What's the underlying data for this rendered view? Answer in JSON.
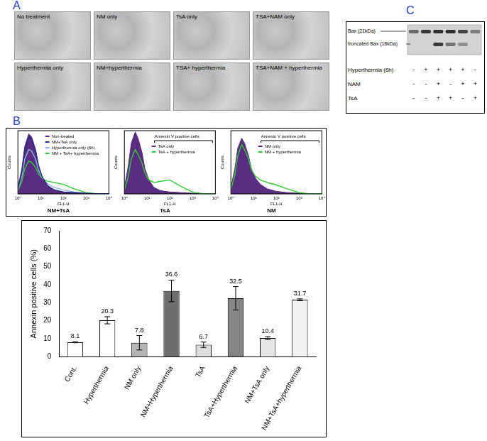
{
  "panel_labels": [
    "A",
    "B",
    "C"
  ],
  "images": [
    "No treatment",
    "NM only",
    "TsA only",
    "TSA+NAM only",
    "Hyperthermia only",
    "NM+hyperthermia",
    "TSA+ hyperthermia",
    "TSA+NAM + hyperthermia"
  ],
  "chart_data": [
    {
      "type": "line",
      "title": "NM+TsA",
      "x_label": "FL1-H",
      "y_label": "Counts",
      "log": "x",
      "grid": false,
      "tick_labels": "x",
      "xlim": [
        1,
        10000
      ],
      "xticks": [
        {
          "value": 1,
          "label": "10⁰"
        },
        {
          "value": 10,
          "label": "10¹"
        },
        {
          "value": 100,
          "label": "10²"
        },
        {
          "value": 1000,
          "label": "10³"
        },
        {
          "value": 10000,
          "label": "10⁴"
        }
      ],
      "ylim": [
        0,
        100
      ],
      "x": [
        1,
        1.5,
        2,
        3,
        4,
        6,
        8,
        12,
        20,
        40,
        100,
        300,
        1000,
        3000,
        10000
      ],
      "series": [
        {
          "name": "Non-treated",
          "type": "area",
          "color": "#5a2d82",
          "values": [
            10,
            40,
            75,
            95,
            90,
            70,
            45,
            25,
            12,
            6,
            3,
            2,
            1,
            0,
            0
          ]
        },
        {
          "name": "NM+TsA only",
          "type": "line",
          "color": "#1f2a8a",
          "values": [
            8,
            35,
            70,
            90,
            88,
            68,
            45,
            26,
            13,
            6,
            3,
            2,
            1,
            0,
            0
          ]
        },
        {
          "name": "Hyperthermia only (6h)",
          "type": "line",
          "color": "#8fb4e8",
          "values": [
            6,
            28,
            55,
            70,
            68,
            55,
            38,
            25,
            16,
            10,
            6,
            3,
            1,
            0,
            0
          ]
        },
        {
          "name": "NM + TsA+ hyperthermia",
          "type": "line",
          "color": "#33cc33",
          "values": [
            5,
            20,
            40,
            52,
            50,
            42,
            32,
            24,
            20,
            18,
            15,
            8,
            2,
            0,
            0
          ]
        }
      ]
    },
    {
      "type": "line",
      "title": "TsA",
      "x_label": "FL1-H",
      "y_label": "Counts",
      "log": "x",
      "grid": false,
      "tick_labels": "x",
      "xlim": [
        1,
        10000
      ],
      "xticks": [
        {
          "value": 1,
          "label": "10⁰"
        },
        {
          "value": 10,
          "label": "10¹"
        },
        {
          "value": 100,
          "label": "10²"
        },
        {
          "value": 1000,
          "label": "10³"
        },
        {
          "value": 10000,
          "label": "10⁴"
        }
      ],
      "ylim": [
        0,
        100
      ],
      "annotations": [
        "Annexin V positive cells"
      ],
      "x": [
        1,
        1.5,
        2,
        3,
        4,
        6,
        8,
        12,
        20,
        40,
        100,
        300,
        1000,
        3000,
        10000
      ],
      "series": [
        {
          "name": "TsA only",
          "type": "area",
          "color": "#5a2d82",
          "values": [
            10,
            45,
            80,
            98,
            88,
            65,
            40,
            22,
            10,
            5,
            3,
            2,
            1,
            0,
            0
          ]
        },
        {
          "name": "TsA + hyperthermia",
          "type": "line",
          "color": "#33cc33",
          "values": [
            6,
            28,
            55,
            70,
            62,
            48,
            33,
            22,
            18,
            20,
            22,
            12,
            3,
            0,
            0
          ]
        }
      ]
    },
    {
      "type": "line",
      "title": "NM",
      "x_label": "FL1-H",
      "y_label": "Counts",
      "log": "x",
      "grid": false,
      "tick_labels": "x",
      "xlim": [
        1,
        10000
      ],
      "xticks": [
        {
          "value": 1,
          "label": "10⁰"
        },
        {
          "value": 10,
          "label": "10¹"
        },
        {
          "value": 100,
          "label": "10²"
        },
        {
          "value": 1000,
          "label": "10³"
        },
        {
          "value": 10000,
          "label": "10⁴"
        }
      ],
      "ylim": [
        0,
        100
      ],
      "annotations": [
        "Annexin V positive cells"
      ],
      "x": [
        1,
        1.5,
        2,
        3,
        4,
        6,
        8,
        12,
        20,
        40,
        100,
        300,
        1000,
        3000,
        10000
      ],
      "series": [
        {
          "name": "NM only",
          "type": "area",
          "color": "#5a2d82",
          "values": [
            10,
            40,
            72,
            88,
            80,
            60,
            40,
            25,
            15,
            8,
            4,
            2,
            1,
            0,
            0
          ]
        },
        {
          "name": "NM + hyperthermia",
          "type": "line",
          "color": "#33cc33",
          "values": [
            7,
            30,
            60,
            78,
            70,
            55,
            38,
            28,
            22,
            18,
            14,
            8,
            2,
            0,
            0
          ]
        }
      ]
    },
    {
      "type": "bar",
      "y_label": "Annexin positive cells (%)",
      "grid": false,
      "data_labels": true,
      "categories": [
        "Cont.",
        "Hyperthermia",
        "NM only",
        "NM+Hyperthermia",
        "TsA",
        "TsA+Hyperthermia",
        "NM+TsA only",
        "NM+TsA+hyperthermia"
      ],
      "values": [
        8.1,
        20.3,
        7.8,
        36.6,
        6.7,
        32.5,
        10.4,
        31.7
      ],
      "errors": [
        0.3,
        2,
        4,
        6,
        1.5,
        6.5,
        0.8,
        0.5
      ],
      "colors": [
        "#ffffff",
        "#ffffff",
        "#b5b5b5",
        "#6e6e6e",
        "#dcdcdc",
        "#858585",
        "#e6e6e6",
        "#f2f2f2"
      ],
      "ylim": [
        0,
        70
      ],
      "yticks": [
        0,
        10,
        20,
        30,
        40,
        50,
        60,
        70
      ]
    }
  ],
  "blot": {
    "bands": [
      {
        "name": "Bax (21kDa)",
        "values": [
          0.55,
          0.8,
          0.85,
          0.85,
          0.75,
          0.45
        ]
      },
      {
        "name": "truncated Bax (18kDa)",
        "values": [
          0,
          0,
          0.8,
          0.5,
          0.35,
          0
        ]
      }
    ],
    "conditions": [
      {
        "name": "Hyperthermia (6h)",
        "signs": [
          "-",
          "+",
          "+",
          "+",
          "+",
          "-"
        ]
      },
      {
        "name": "NAM",
        "signs": [
          "-",
          "-",
          "+",
          "-",
          "+",
          "+"
        ]
      },
      {
        "name": "TsA",
        "signs": [
          "-",
          "-",
          "+",
          "+",
          "-",
          "+"
        ]
      }
    ]
  }
}
